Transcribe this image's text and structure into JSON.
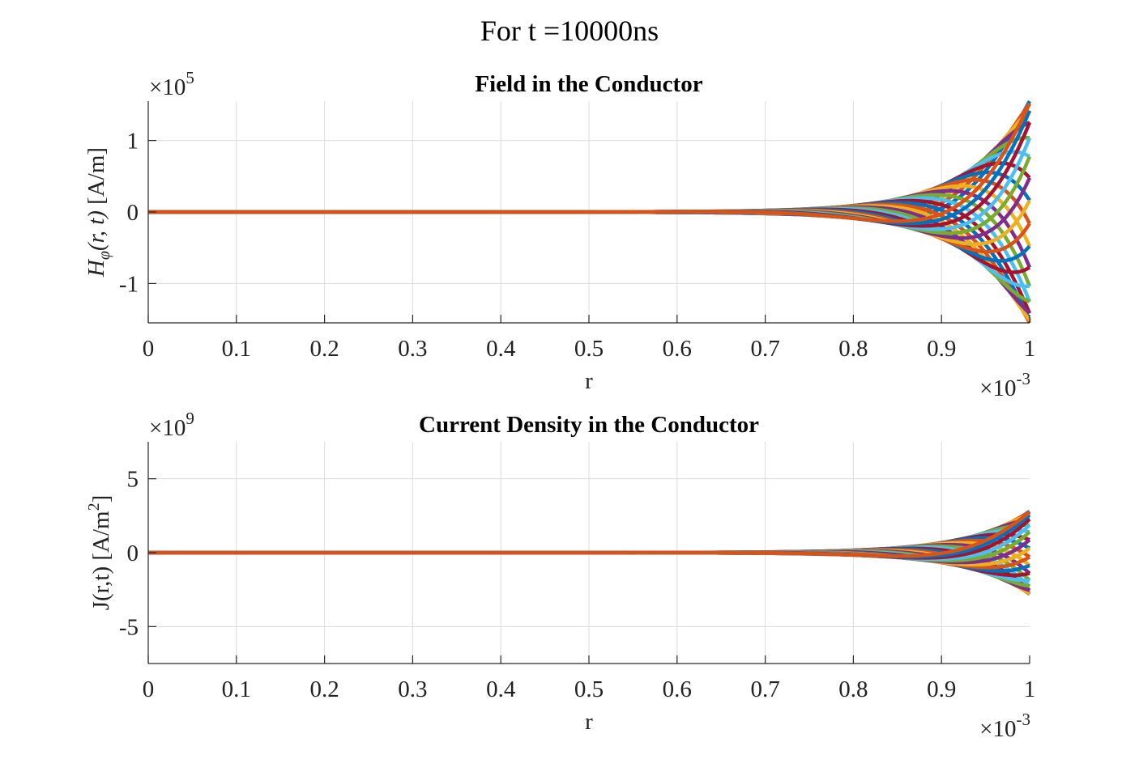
{
  "figure": {
    "suptitle": "For t =10000ns"
  },
  "palette": [
    "#0072BD",
    "#D95319",
    "#EDB120",
    "#7E2F8E",
    "#77AC30",
    "#4DBEEE",
    "#A2142F"
  ],
  "chart_data": [
    {
      "type": "line",
      "title": "Field in the Conductor",
      "xlabel": "r",
      "ylabel_parts": {
        "main": "H",
        "sub": "φ",
        "rest": "(r, t)",
        "units": "[A/m]"
      },
      "x_exponent": {
        "base": "×10",
        "exp": "-3"
      },
      "y_exponent": {
        "base": "×10",
        "exp": "5"
      },
      "xlim": [
        0,
        0.001
      ],
      "ylim": [
        -1.55,
        1.55
      ],
      "y_scale_note": "values in units of 1e5 A/m",
      "xticks": [
        0,
        0.0001,
        0.0002,
        0.0003,
        0.0004,
        0.0005,
        0.0006,
        0.0007,
        0.0008,
        0.0009,
        0.001
      ],
      "xtick_labels": [
        "0",
        "0.1",
        "0.2",
        "0.3",
        "0.4",
        "0.5",
        "0.6",
        "0.7",
        "0.8",
        "0.9",
        "1"
      ],
      "yticks": [
        -1,
        0,
        1
      ],
      "ytick_labels": [
        "-1",
        "0",
        "1"
      ],
      "grid": true,
      "family": {
        "count": 30,
        "surface_amplitude": 1.55,
        "decay_length": 7e-05,
        "phase_step_deg": 12
      }
    },
    {
      "type": "line",
      "title": "Current Density in the Conductor",
      "xlabel": "r",
      "ylabel_parts": {
        "main": "J(r,t) [A/m",
        "sup": "2",
        "close": "]"
      },
      "x_exponent": {
        "base": "×10",
        "exp": "-3"
      },
      "y_exponent": {
        "base": "×10",
        "exp": "9"
      },
      "xlim": [
        0,
        0.001
      ],
      "ylim": [
        -7.5,
        7.5
      ],
      "y_scale_note": "values in units of 1e9 A/m^2",
      "xticks": [
        0,
        0.0001,
        0.0002,
        0.0003,
        0.0004,
        0.0005,
        0.0006,
        0.0007,
        0.0008,
        0.0009,
        0.001
      ],
      "xtick_labels": [
        "0",
        "0.1",
        "0.2",
        "0.3",
        "0.4",
        "0.5",
        "0.6",
        "0.7",
        "0.8",
        "0.9",
        "1"
      ],
      "yticks": [
        -5,
        0,
        5
      ],
      "ytick_labels": [
        "-5",
        "0",
        "5"
      ],
      "grid": true,
      "family": {
        "count": 30,
        "surface_amplitude": 2.8,
        "decay_length": 7e-05,
        "phase_step_deg": 12
      }
    }
  ]
}
